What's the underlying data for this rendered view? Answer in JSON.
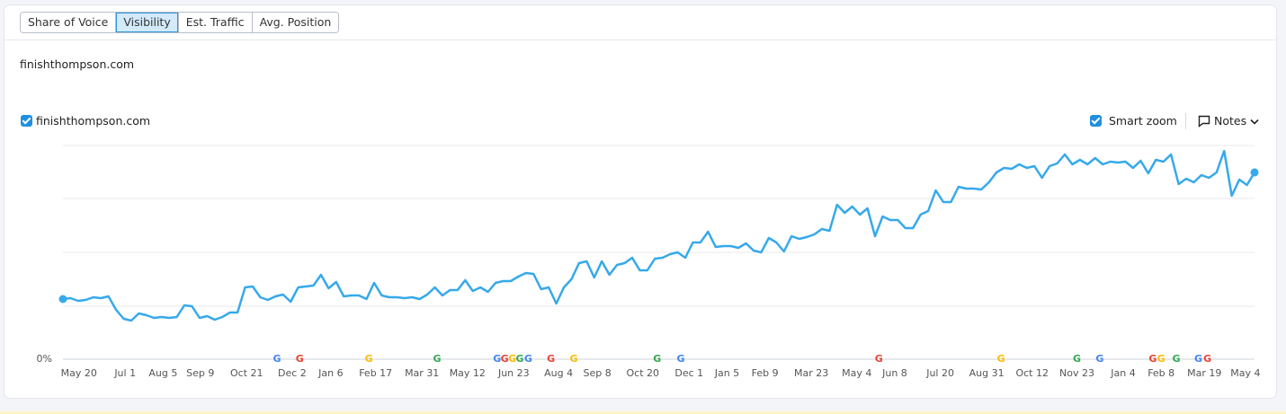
{
  "tabs": [
    "Share of Voice",
    "Visibility",
    "Est. Traffic",
    "Avg. Position"
  ],
  "active_tab": 1,
  "domain_title": "finishthompson.com",
  "controls": {
    "smart_zoom": "Smart zoom",
    "notes": "Notes"
  },
  "chart_data": {
    "type": "line",
    "series": [
      {
        "name": "finishthompson.com",
        "color": "#36a9ea",
        "values": [
          67,
          68,
          65,
          66,
          69,
          68,
          70,
          55,
          45,
          43,
          51,
          49,
          46,
          47,
          46,
          47,
          60,
          59,
          46,
          48,
          44,
          47,
          52,
          52,
          80,
          81,
          69,
          66,
          70,
          72,
          64,
          80,
          81,
          82,
          94,
          79,
          86,
          70,
          71,
          71,
          67,
          85,
          71,
          69,
          69,
          68,
          69,
          67,
          72,
          80,
          71,
          77,
          77,
          88,
          76,
          80,
          75,
          85,
          87,
          87,
          92,
          96,
          95,
          78,
          80,
          62,
          80,
          89,
          107,
          109,
          91,
          109,
          94,
          105,
          107,
          113,
          99,
          99,
          112,
          113,
          117,
          119,
          113,
          130,
          130,
          142,
          125,
          126,
          126,
          124,
          129,
          121,
          119,
          135,
          130,
          120,
          137,
          134,
          136,
          139,
          145,
          143,
          172,
          163,
          170,
          161,
          168,
          137,
          159,
          155,
          155,
          146,
          146,
          161,
          165,
          188,
          175,
          175,
          192,
          190,
          190,
          189,
          197,
          208,
          213,
          212,
          217,
          213,
          215,
          202,
          215,
          218,
          228,
          217,
          222,
          217,
          224,
          217,
          220,
          219,
          220,
          213,
          221,
          207,
          222,
          220,
          228,
          195,
          201,
          197,
          205,
          202,
          208,
          232,
          182,
          200,
          194,
          208
        ]
      }
    ],
    "xlim": [
      0,
      157
    ],
    "ylim": [
      0,
      240
    ],
    "yticks": [
      {
        "value": 0,
        "label": "0%"
      }
    ],
    "xticks": [
      {
        "value": 2.1,
        "label": "May 20"
      },
      {
        "value": 8.2,
        "label": "Jul 1"
      },
      {
        "value": 13.2,
        "label": "Aug 5"
      },
      {
        "value": 18.1,
        "label": "Sep 9"
      },
      {
        "value": 24.2,
        "label": "Oct 21"
      },
      {
        "value": 30.2,
        "label": "Dec 2"
      },
      {
        "value": 35.3,
        "label": "Jan 6"
      },
      {
        "value": 41.2,
        "label": "Feb 17"
      },
      {
        "value": 47.3,
        "label": "Mar 31"
      },
      {
        "value": 53.3,
        "label": "May 12"
      },
      {
        "value": 59.4,
        "label": "Jun 23"
      },
      {
        "value": 65.3,
        "label": "Aug 4"
      },
      {
        "value": 70.4,
        "label": "Sep 8"
      },
      {
        "value": 76.4,
        "label": "Oct 20"
      },
      {
        "value": 82.5,
        "label": "Dec 1"
      },
      {
        "value": 87.5,
        "label": "Jan 5"
      },
      {
        "value": 92.5,
        "label": "Feb 9"
      },
      {
        "value": 98.6,
        "label": "Mar 23"
      },
      {
        "value": 104.6,
        "label": "May 4"
      },
      {
        "value": 109.6,
        "label": "Jun 8"
      },
      {
        "value": 115.6,
        "label": "Jul 20"
      },
      {
        "value": 121.7,
        "label": "Aug 31"
      },
      {
        "value": 127.7,
        "label": "Oct 12"
      },
      {
        "value": 133.6,
        "label": "Nov 23"
      },
      {
        "value": 139.7,
        "label": "Jan 4"
      },
      {
        "value": 144.7,
        "label": "Feb 8"
      },
      {
        "value": 150.4,
        "label": "Mar 19"
      },
      {
        "value": 155.8,
        "label": "May 4"
      }
    ],
    "annotations": [
      {
        "x": 28.2,
        "label": "G"
      },
      {
        "x": 31.2,
        "label": "G"
      },
      {
        "x": 40.3,
        "label": "G"
      },
      {
        "x": 49.3,
        "label": "G"
      },
      {
        "x": 57.2,
        "label": "G"
      },
      {
        "x": 58.2,
        "label": "G"
      },
      {
        "x": 59.2,
        "label": "G"
      },
      {
        "x": 60.2,
        "label": "G"
      },
      {
        "x": 61.3,
        "label": "G"
      },
      {
        "x": 64.3,
        "label": "G"
      },
      {
        "x": 67.3,
        "label": "G"
      },
      {
        "x": 78.3,
        "label": "G"
      },
      {
        "x": 81.4,
        "label": "G"
      },
      {
        "x": 107.5,
        "label": "G"
      },
      {
        "x": 123.6,
        "label": "G"
      },
      {
        "x": 133.6,
        "label": "G"
      },
      {
        "x": 136.6,
        "label": "G"
      },
      {
        "x": 143.6,
        "label": "G"
      },
      {
        "x": 144.7,
        "label": "G"
      },
      {
        "x": 146.7,
        "label": "G"
      },
      {
        "x": 149.6,
        "label": "G"
      },
      {
        "x": 150.8,
        "label": "G"
      }
    ]
  }
}
